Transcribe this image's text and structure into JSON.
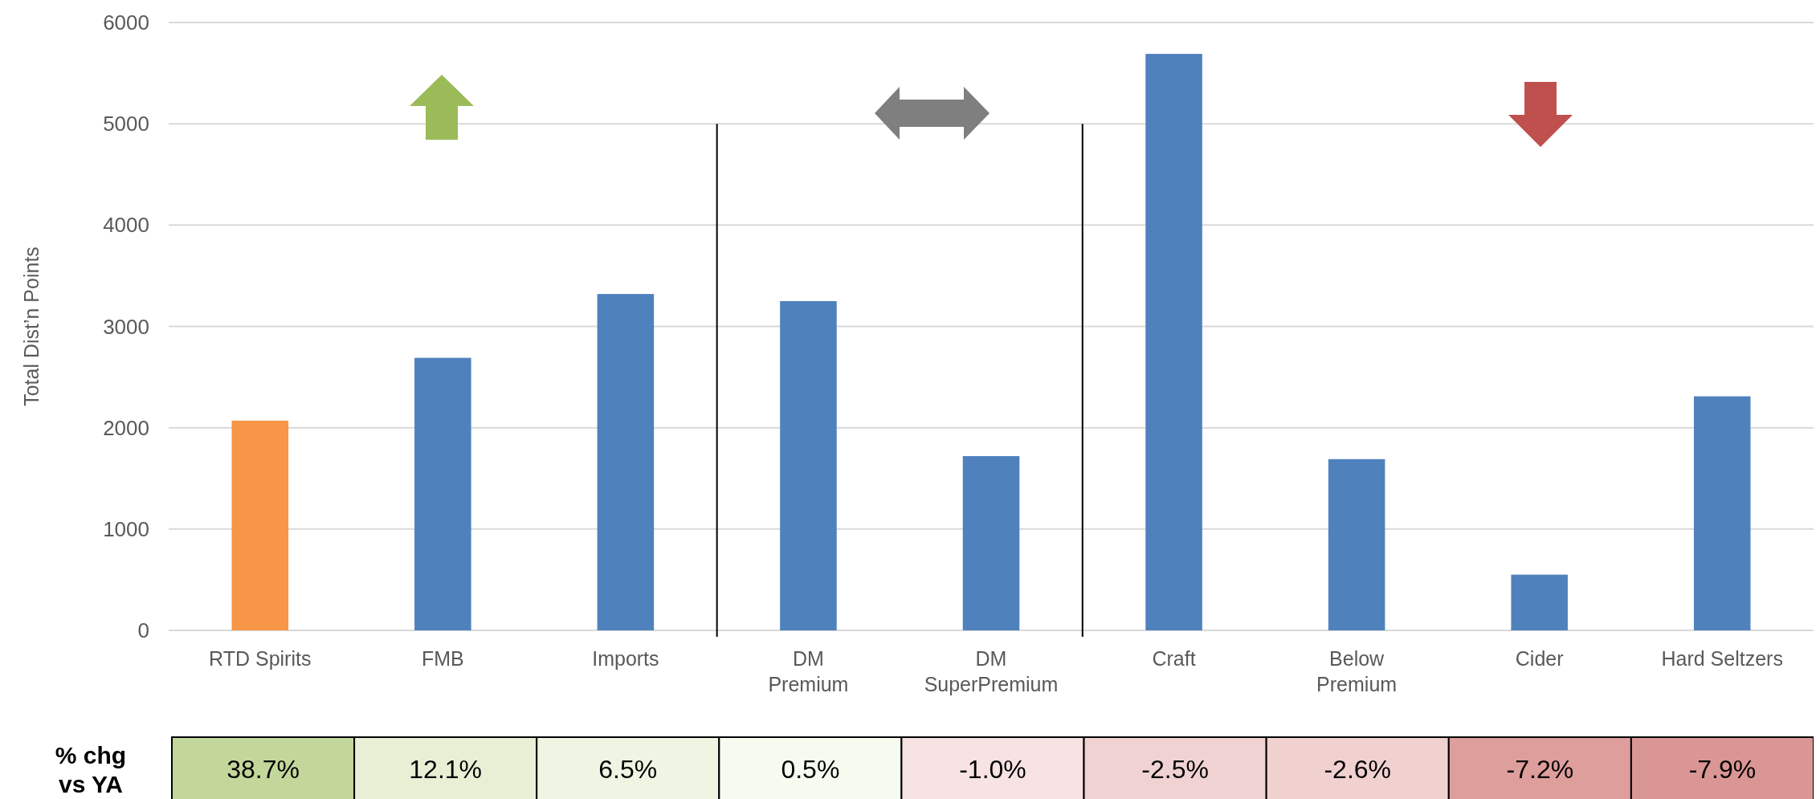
{
  "chart_data": [
    {
      "type": "bar",
      "ylabel": "Total Dist’n Points",
      "categories": [
        "RTD Spirits",
        "FMB",
        "Imports",
        "DM\nPremium",
        "DM\nSuperPremium",
        "Craft",
        "Below\nPremium",
        "Cider",
        "Hard Seltzers"
      ],
      "values": [
        2070,
        2690,
        3320,
        3250,
        1720,
        5690,
        1690,
        550,
        2310
      ],
      "colors": [
        "#f79646",
        "#4f81bd",
        "#4f81bd",
        "#4f81bd",
        "#4f81bd",
        "#4f81bd",
        "#4f81bd",
        "#4f81bd",
        "#4f81bd"
      ],
      "ylim": [
        0,
        6000
      ],
      "yticks": [
        0,
        1000,
        2000,
        3000,
        4000,
        5000,
        6000
      ],
      "grid": "y"
    },
    {
      "type": "heatmap",
      "categories": [
        null,
        null,
        null,
        null,
        null,
        null,
        null,
        null,
        null
      ],
      "y_categories": [
        "% chg vs YA"
      ],
      "cells": [
        [
          38.7,
          12.1,
          6.5,
          0.5,
          -1.0,
          -2.5,
          -2.6,
          -7.2,
          -7.9
        ]
      ],
      "cell_labels": [
        [
          "38.7%",
          "12.1%",
          "6.5%",
          "0.5%",
          "-1.0%",
          "-2.5%",
          "-2.6%",
          "-7.2%",
          "-7.9%"
        ]
      ]
    }
  ]
}
